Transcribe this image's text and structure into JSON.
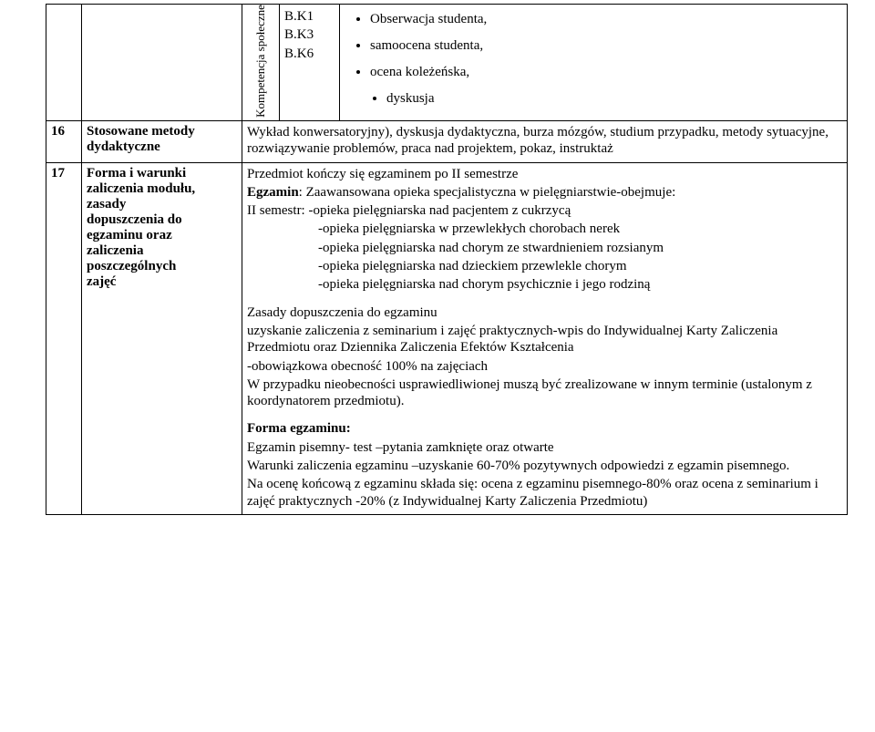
{
  "row1": {
    "rot_label": "Kompetencja społeczne",
    "codes": {
      "c1": "B.K1",
      "c2": "B.K3",
      "c3": "B.K6"
    },
    "bullets": {
      "b1": "Obserwacja studenta,",
      "b2": "samoocena studenta,",
      "b3": "ocena koleżeńska,",
      "b4": "dyskusja"
    }
  },
  "row2": {
    "num": "16",
    "label": "Stosowane metody dydaktyczne",
    "body": "Wykład  konwersatoryjny), dyskusja dydaktyczna, burza mózgów, studium przypadku, metody sytuacyjne, rozwiązywanie problemów, praca nad projektem, pokaz, instruktaż"
  },
  "row3": {
    "num": "17",
    "label_l1": "Forma i warunki",
    "label_l2": "zaliczenia modułu,",
    "label_l3": "zasady",
    "label_l4": "dopuszczenia do",
    "label_l5": "egzaminu oraz",
    "label_l6": "zaliczenia",
    "label_l7": "poszczególnych",
    "label_l8": "zajęć",
    "p1": "Przedmiot kończy się egzaminem po II semestrze",
    "p2a": "Egzamin",
    "p2b": ": Zaawansowana opieka specjalistyczna w pielęgniarstwie-obejmuje:",
    "p3": "II semestr: -opieka pielęgniarska nad pacjentem z cukrzycą",
    "p4": "-opieka pielęgniarska w przewlekłych chorobach nerek",
    "p5": "-opieka pielęgniarska  nad chorym ze stwardnieniem rozsianym",
    "p6": "-opieka pielęgniarska nad  dzieckiem przewlekle chorym",
    "p7": "-opieka pielęgniarska nad  chorym psychicznie i jego rodziną",
    "p8": "Zasady dopuszczenia do egzaminu",
    "p9": " uzyskanie zaliczenia z seminarium i zajęć praktycznych-wpis do Indywidualnej Karty Zaliczenia Przedmiotu oraz Dziennika Zaliczenia Efektów Kształcenia",
    "p10": "-obowiązkowa obecność 100% na zajęciach",
    "p11": "W przypadku nieobecności usprawiedliwionej muszą być zrealizowane w innym terminie (ustalonym z koordynatorem przedmiotu).",
    "p12": "Forma egzaminu:",
    "p13": "Egzamin pisemny- test –pytania zamknięte oraz otwarte",
    "p14": "Warunki zaliczenia egzaminu –uzyskanie 60-70%  pozytywnych odpowiedzi z egzamin pisemnego.",
    "p15": "Na ocenę końcową z egzaminu składa się:  ocena  z  egzaminu pisemnego-80% oraz ocena z seminarium i zajęć praktycznych -20% (z Indywidualnej Karty Zaliczenia Przedmiotu)"
  }
}
